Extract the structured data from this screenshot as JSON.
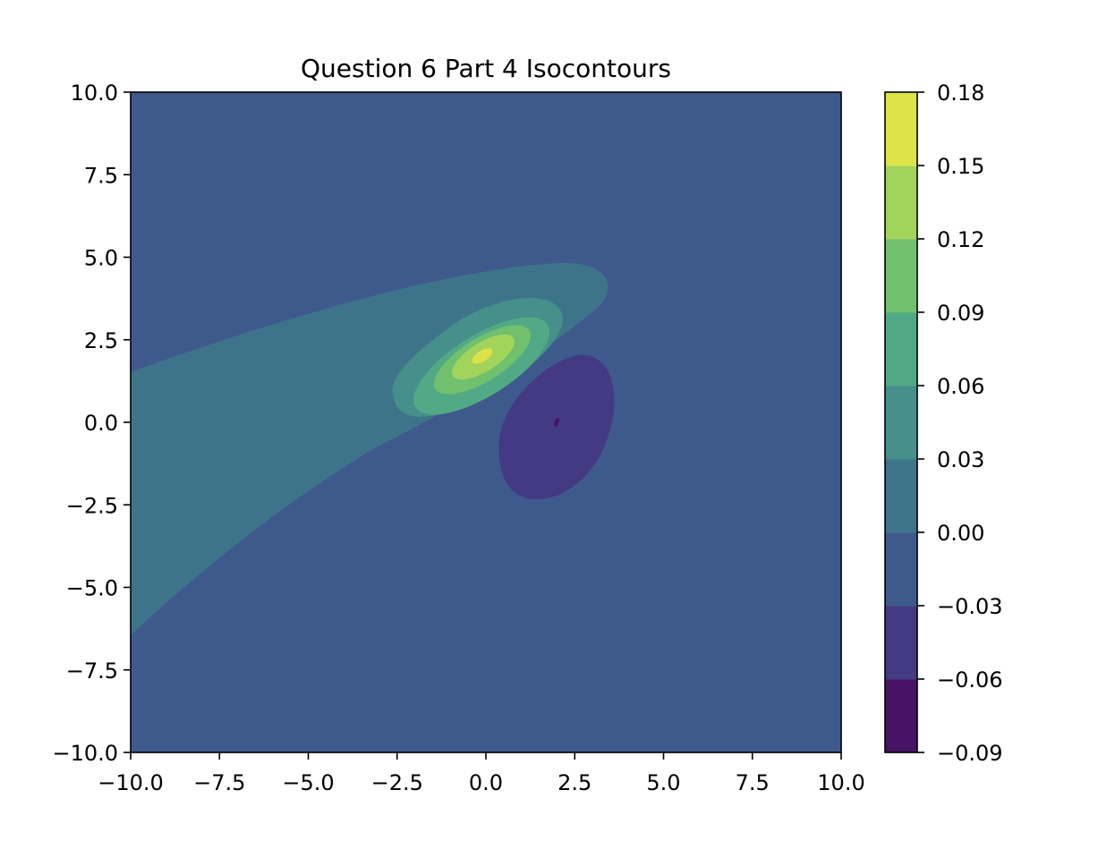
{
  "chart_data": {
    "type": "contour",
    "title": "Question 6 Part 4 Isocontours",
    "xlabel": "",
    "ylabel": "",
    "xlim": [
      -10,
      10
    ],
    "ylim": [
      -10,
      10
    ],
    "xticks": [
      "−10.0",
      "−7.5",
      "−5.0",
      "−2.5",
      "0.0",
      "2.5",
      "5.0",
      "7.5",
      "10.0"
    ],
    "yticks": [
      "10.0",
      "7.5",
      "5.0",
      "2.5",
      "0.0",
      "−2.5",
      "−5.0",
      "−7.5",
      "−10.0"
    ],
    "grid": false,
    "colormap": "viridis",
    "colorbar": {
      "ticks": [
        "0.18",
        "0.15",
        "0.12",
        "0.09",
        "0.06",
        "0.03",
        "0.00",
        "−0.03",
        "−0.06",
        "−0.09"
      ],
      "levels": [
        -0.09,
        -0.06,
        -0.03,
        0.0,
        0.03,
        0.06,
        0.09,
        0.12,
        0.15,
        0.18
      ],
      "colors": [
        "#471365",
        "#443983",
        "#3e5a8c",
        "#3e748a",
        "#468f8a",
        "#51aa85",
        "#70c06e",
        "#a2d45c",
        "#dde346"
      ]
    },
    "regions": [
      {
        "level_band": "-0.03 to 0.00",
        "color": "#3e5a8c",
        "description": "background"
      },
      {
        "level_band": "0.00 to 0.03",
        "color": "#3e748a",
        "center": [
          -3.0,
          1.0
        ]
      },
      {
        "level_band": "0.03 to 0.06",
        "color": "#468f8a",
        "center": [
          0.0,
          1.4
        ]
      },
      {
        "level_band": "0.06 to 0.09",
        "color": "#51aa85",
        "center": [
          0.0,
          1.6
        ]
      },
      {
        "level_band": "0.09 to 0.12",
        "color": "#70c06e",
        "center": [
          0.0,
          1.7
        ]
      },
      {
        "level_band": "0.12 to 0.15",
        "color": "#a2d45c",
        "center": [
          0.0,
          1.8
        ]
      },
      {
        "level_band": "0.15 to 0.18",
        "color": "#dde346",
        "center": [
          -0.1,
          1.9
        ]
      },
      {
        "level_band": "-0.06 to -0.03",
        "color": "#443983",
        "center": [
          2.0,
          0.0
        ]
      },
      {
        "level_band": "-0.09 to -0.06",
        "color": "#471365",
        "center": [
          2.0,
          0.0
        ]
      }
    ]
  }
}
